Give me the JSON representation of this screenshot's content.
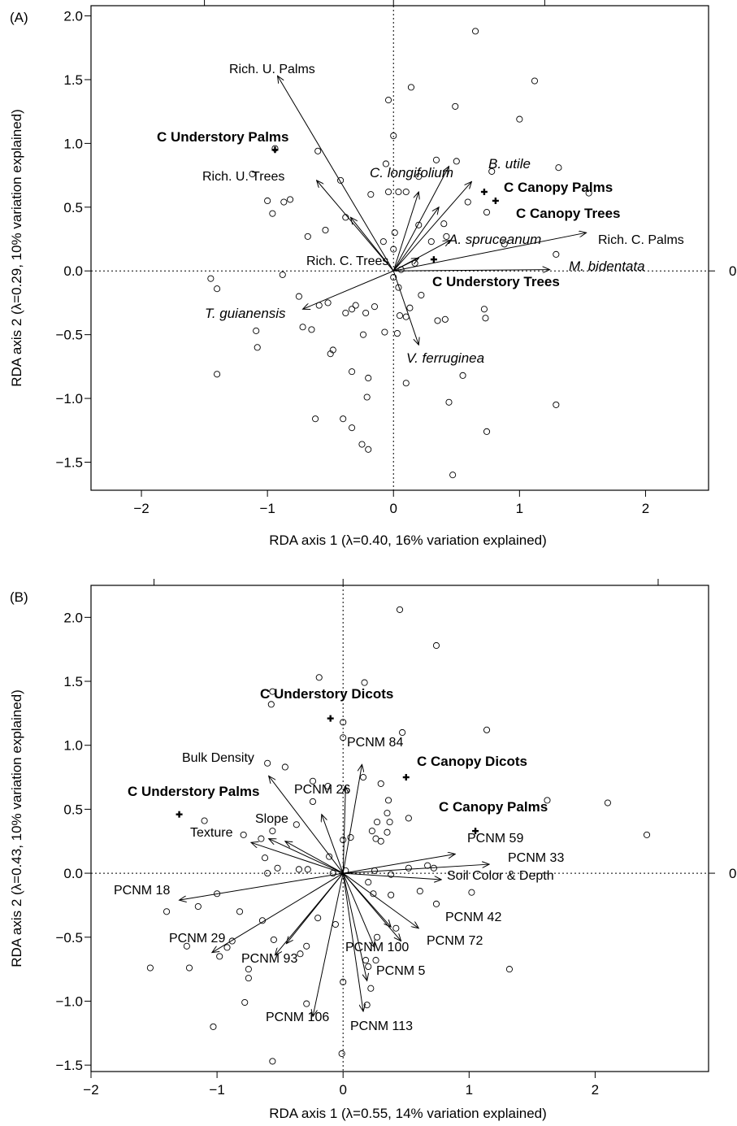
{
  "chart_data": [
    {
      "type": "scatter",
      "panel_label": "(A)",
      "xlabel": "RDA axis 1 (λ=0.40, 16% variation explained)",
      "ylabel": "RDA axis 2 (λ=0.29, 10% variation explained)",
      "xlim": [
        -2.4,
        2.5
      ],
      "ylim": [
        -1.72,
        2.08
      ],
      "xticks": [
        -2,
        -1,
        0,
        1,
        2
      ],
      "yticks": [
        -1.5,
        -1.0,
        -0.5,
        0.0,
        0.5,
        1.0,
        1.5,
        2.0
      ],
      "xtick_labels": [
        "−2",
        "−1",
        "0",
        "1",
        "2"
      ],
      "ytick_labels": [
        "−1.5",
        "−1.0",
        "−0.5",
        "0.0",
        "0.5",
        "1.0",
        "1.5",
        "2.0"
      ],
      "top_ticks": [
        -1.5,
        0,
        1.2
      ],
      "right_label": "0",
      "points": [
        [
          0.65,
          1.88
        ],
        [
          1.12,
          1.49
        ],
        [
          0.14,
          1.44
        ],
        [
          0.49,
          1.29
        ],
        [
          1.0,
          1.19
        ],
        [
          -0.04,
          1.34
        ],
        [
          0.0,
          1.06
        ],
        [
          -0.94,
          0.96
        ],
        [
          -0.6,
          0.94
        ],
        [
          -0.06,
          0.84
        ],
        [
          0.34,
          0.87
        ],
        [
          0.5,
          0.86
        ],
        [
          0.78,
          0.78
        ],
        [
          1.31,
          0.81
        ],
        [
          -1.12,
          0.76
        ],
        [
          -0.42,
          0.71
        ],
        [
          0.2,
          0.74
        ],
        [
          0.1,
          0.62
        ],
        [
          -0.18,
          0.6
        ],
        [
          -0.04,
          0.62
        ],
        [
          0.04,
          0.62
        ],
        [
          -1.0,
          0.55
        ],
        [
          -0.87,
          0.54
        ],
        [
          -0.82,
          0.56
        ],
        [
          -0.96,
          0.45
        ],
        [
          -0.38,
          0.42
        ],
        [
          -0.54,
          0.32
        ],
        [
          -0.68,
          0.27
        ],
        [
          0.42,
          0.27
        ],
        [
          1.55,
          0.61
        ],
        [
          0.74,
          0.46
        ],
        [
          0.59,
          0.54
        ],
        [
          0.2,
          0.36
        ],
        [
          0.4,
          0.37
        ],
        [
          0.01,
          0.3
        ],
        [
          -0.08,
          0.23
        ],
        [
          0.3,
          0.23
        ],
        [
          0.0,
          0.17
        ],
        [
          0.88,
          0.21
        ],
        [
          1.29,
          0.13
        ],
        [
          0.17,
          0.06
        ],
        [
          0.06,
          0.01
        ],
        [
          0.0,
          -0.05
        ],
        [
          -0.88,
          -0.03
        ],
        [
          -1.45,
          -0.06
        ],
        [
          -1.4,
          -0.14
        ],
        [
          -0.75,
          -0.2
        ],
        [
          0.04,
          -0.13
        ],
        [
          0.22,
          -0.19
        ],
        [
          -0.59,
          -0.27
        ],
        [
          -0.52,
          -0.25
        ],
        [
          -0.3,
          -0.27
        ],
        [
          -0.15,
          -0.28
        ],
        [
          -0.33,
          -0.3
        ],
        [
          0.13,
          -0.29
        ],
        [
          0.05,
          -0.35
        ],
        [
          0.1,
          -0.36
        ],
        [
          0.72,
          -0.3
        ],
        [
          0.73,
          -0.37
        ],
        [
          -0.38,
          -0.33
        ],
        [
          -0.22,
          -0.33
        ],
        [
          0.35,
          -0.39
        ],
        [
          0.41,
          -0.38
        ],
        [
          -0.72,
          -0.44
        ],
        [
          -0.65,
          -0.46
        ],
        [
          -1.09,
          -0.47
        ],
        [
          -1.08,
          -0.6
        ],
        [
          -0.24,
          -0.5
        ],
        [
          -0.07,
          -0.48
        ],
        [
          0.03,
          -0.49
        ],
        [
          -0.48,
          -0.62
        ],
        [
          -0.5,
          -0.65
        ],
        [
          -0.33,
          -0.79
        ],
        [
          -0.2,
          -0.84
        ],
        [
          0.1,
          -0.88
        ],
        [
          0.55,
          -0.82
        ],
        [
          -1.4,
          -0.81
        ],
        [
          -0.21,
          -0.99
        ],
        [
          0.44,
          -1.03
        ],
        [
          1.29,
          -1.05
        ],
        [
          -0.62,
          -1.16
        ],
        [
          -0.4,
          -1.16
        ],
        [
          -0.33,
          -1.23
        ],
        [
          -0.25,
          -1.36
        ],
        [
          -0.2,
          -1.4
        ],
        [
          0.74,
          -1.26
        ],
        [
          0.47,
          -1.6
        ]
      ],
      "centroids": [
        {
          "label": "C Understory Palms",
          "x": -0.94,
          "y": 0.95
        },
        {
          "label": "C Canopy Palms",
          "x": 0.72,
          "y": 0.62
        },
        {
          "label": "C Canopy Trees",
          "x": 0.81,
          "y": 0.55
        },
        {
          "label": "C Understory Trees",
          "x": 0.32,
          "y": 0.09
        }
      ],
      "arrows": [
        {
          "label": "Rich. U. Palms",
          "x": -0.92,
          "y": 1.53,
          "style": "plain"
        },
        {
          "label": "Rich. U. Trees",
          "x": -0.61,
          "y": 0.71,
          "style": "plain"
        },
        {
          "label": "C. longifolium",
          "x": 0.44,
          "y": 0.82,
          "style": "italic"
        },
        {
          "label": "B. utile",
          "x": 0.62,
          "y": 0.7,
          "style": "italic"
        },
        {
          "label": "A. spruceanum",
          "x": 0.45,
          "y": 0.24,
          "style": "italic"
        },
        {
          "label": "Rich. C. Palms",
          "x": 1.53,
          "y": 0.3,
          "style": "plain"
        },
        {
          "label": "M. bidentata",
          "x": 1.24,
          "y": 0.01,
          "style": "italic"
        },
        {
          "label": "Rich. C. Trees",
          "x": 0.2,
          "y": 0.1,
          "style": "plain"
        },
        {
          "label": "T. guianensis",
          "x": -0.72,
          "y": -0.3,
          "style": "italic"
        },
        {
          "label": "V. ferruginea",
          "x": 0.2,
          "y": -0.58,
          "style": "italic"
        },
        {
          "label": "",
          "x": 0.2,
          "y": 0.62,
          "style": "plain"
        },
        {
          "label": "",
          "x": 0.36,
          "y": 0.5,
          "style": "plain"
        },
        {
          "label": "",
          "x": -0.34,
          "y": 0.42,
          "style": "plain"
        }
      ]
    },
    {
      "type": "scatter",
      "panel_label": "(B)",
      "xlabel": "RDA axis 1 (λ=0.55, 14% variation explained)",
      "ylabel": "RDA axis 2 (λ=0.43, 10% variation explained)",
      "xlim": [
        -2.0,
        2.9
      ],
      "ylim": [
        -1.55,
        2.25
      ],
      "xticks": [
        -2,
        -1,
        0,
        1,
        2
      ],
      "yticks": [
        -1.5,
        -1.0,
        -0.5,
        0.0,
        0.5,
        1.0,
        1.5,
        2.0
      ],
      "xtick_labels": [
        "−2",
        "−1",
        "0",
        "1",
        "2"
      ],
      "ytick_labels": [
        "−1.5",
        "−1.0",
        "−0.5",
        "0.0",
        "0.5",
        "1.0",
        "1.5",
        "2.0"
      ],
      "top_ticks": [
        -1.5,
        0,
        2.5
      ],
      "right_label": "0",
      "points": [
        [
          0.45,
          2.06
        ],
        [
          0.74,
          1.78
        ],
        [
          -0.19,
          1.53
        ],
        [
          0.17,
          1.49
        ],
        [
          -0.56,
          1.42
        ],
        [
          -0.57,
          1.32
        ],
        [
          0.0,
          1.18
        ],
        [
          0.47,
          1.1
        ],
        [
          1.14,
          1.12
        ],
        [
          0.0,
          1.06
        ],
        [
          -0.6,
          0.86
        ],
        [
          -0.46,
          0.83
        ],
        [
          -0.24,
          0.72
        ],
        [
          0.16,
          0.75
        ],
        [
          0.3,
          0.7
        ],
        [
          -0.12,
          0.68
        ],
        [
          -0.24,
          0.56
        ],
        [
          0.36,
          0.57
        ],
        [
          0.35,
          0.47
        ],
        [
          0.27,
          0.4
        ],
        [
          0.37,
          0.4
        ],
        [
          0.52,
          0.43
        ],
        [
          1.62,
          0.57
        ],
        [
          2.1,
          0.55
        ],
        [
          2.41,
          0.3
        ],
        [
          -1.1,
          0.41
        ],
        [
          -0.56,
          0.33
        ],
        [
          -0.37,
          0.38
        ],
        [
          0.23,
          0.33
        ],
        [
          0.35,
          0.32
        ],
        [
          -0.79,
          0.3
        ],
        [
          -0.65,
          0.27
        ],
        [
          0.0,
          0.26
        ],
        [
          0.06,
          0.28
        ],
        [
          0.26,
          0.27
        ],
        [
          0.3,
          0.25
        ],
        [
          -0.62,
          0.12
        ],
        [
          -0.11,
          0.13
        ],
        [
          -0.6,
          0.0
        ],
        [
          -0.35,
          0.03
        ],
        [
          -0.52,
          0.04
        ],
        [
          -0.28,
          0.03
        ],
        [
          -0.08,
          0.0
        ],
        [
          0.02,
          0.02
        ],
        [
          0.25,
          0.02
        ],
        [
          0.38,
          -0.01
        ],
        [
          0.52,
          0.04
        ],
        [
          0.67,
          0.06
        ],
        [
          0.72,
          0.04
        ],
        [
          1.02,
          -0.15
        ],
        [
          0.2,
          -0.07
        ],
        [
          0.24,
          -0.16
        ],
        [
          0.38,
          -0.17
        ],
        [
          0.61,
          -0.14
        ],
        [
          0.74,
          -0.24
        ],
        [
          -1.0,
          -0.16
        ],
        [
          -1.4,
          -0.3
        ],
        [
          -1.15,
          -0.26
        ],
        [
          -0.82,
          -0.3
        ],
        [
          -0.64,
          -0.37
        ],
        [
          -0.2,
          -0.35
        ],
        [
          -0.06,
          -0.4
        ],
        [
          0.27,
          -0.5
        ],
        [
          0.42,
          -0.43
        ],
        [
          -0.29,
          -0.57
        ],
        [
          -0.55,
          -0.52
        ],
        [
          -0.34,
          -0.63
        ],
        [
          -0.88,
          -0.53
        ],
        [
          -1.24,
          -0.57
        ],
        [
          -0.98,
          -0.65
        ],
        [
          -0.92,
          -0.58
        ],
        [
          -0.75,
          -0.75
        ],
        [
          -0.75,
          -0.82
        ],
        [
          0.18,
          -0.68
        ],
        [
          0.26,
          -0.68
        ],
        [
          0.2,
          -0.73
        ],
        [
          0.0,
          -0.85
        ],
        [
          0.22,
          -0.9
        ],
        [
          -1.53,
          -0.74
        ],
        [
          -1.22,
          -0.74
        ],
        [
          1.32,
          -0.75
        ],
        [
          -0.78,
          -1.01
        ],
        [
          -0.29,
          -1.02
        ],
        [
          0.19,
          -1.03
        ],
        [
          -1.03,
          -1.2
        ],
        [
          -0.56,
          -1.47
        ],
        [
          -0.01,
          -1.41
        ]
      ],
      "centroids": [
        {
          "label": "C Understory Dicots",
          "x": -0.1,
          "y": 1.21
        },
        {
          "label": "C Canopy Dicots",
          "x": 0.5,
          "y": 0.75
        },
        {
          "label": "C Understory Palms",
          "x": -1.3,
          "y": 0.46
        },
        {
          "label": "C Canopy Palms",
          "x": 1.05,
          "y": 0.33
        }
      ],
      "arrows": [
        {
          "label": "PCNM 84",
          "x": 0.15,
          "y": 0.85
        },
        {
          "label": "Bulk Density",
          "x": -0.59,
          "y": 0.76
        },
        {
          "label": "PCNM 26",
          "x": -0.17,
          "y": 0.46
        },
        {
          "label": "Slope",
          "x": -0.59,
          "y": 0.27
        },
        {
          "label": "Texture",
          "x": -0.73,
          "y": 0.24
        },
        {
          "label": "PCNM 59",
          "x": 0.89,
          "y": 0.15
        },
        {
          "label": "PCNM 33",
          "x": 1.16,
          "y": 0.07
        },
        {
          "label": "Soil Color & Depth",
          "x": 0.78,
          "y": -0.05
        },
        {
          "label": "PCNM 18",
          "x": -1.3,
          "y": -0.21
        },
        {
          "label": "PCNM 42",
          "x": 0.6,
          "y": -0.43
        },
        {
          "label": "PCNM 72",
          "x": 0.46,
          "y": -0.53
        },
        {
          "label": "PCNM 29",
          "x": -1.04,
          "y": -0.62
        },
        {
          "label": "PCNM 93",
          "x": -0.54,
          "y": -0.64
        },
        {
          "label": "PCNM 100",
          "x": 0.25,
          "y": -0.58
        },
        {
          "label": "PCNM 5",
          "x": 0.19,
          "y": -0.84
        },
        {
          "label": "PCNM 106",
          "x": -0.24,
          "y": -1.12
        },
        {
          "label": "PCNM 113",
          "x": 0.16,
          "y": -1.08
        },
        {
          "label": "",
          "x": -0.46,
          "y": 0.25
        },
        {
          "label": "",
          "x": 0.02,
          "y": 0.68
        },
        {
          "label": "",
          "x": 0.38,
          "y": -0.42
        },
        {
          "label": "",
          "x": -0.45,
          "y": -0.55
        }
      ]
    }
  ]
}
